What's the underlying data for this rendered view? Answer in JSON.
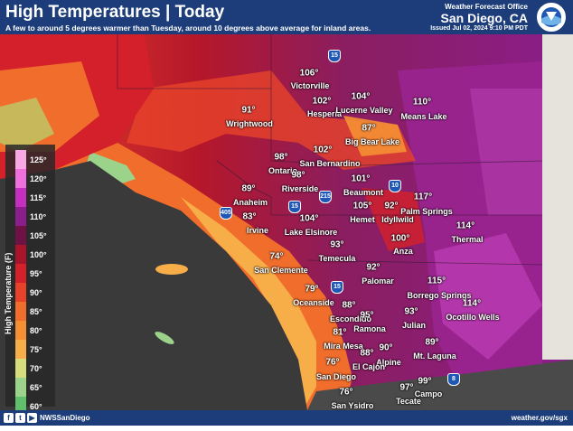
{
  "header": {
    "title": "High Temperatures | Today",
    "subtitle": "A few to around 5 degrees warmer than Tuesday, around 10 degrees above average for inland areas.",
    "office_line1": "Weather Forecast Office",
    "office_line2": "San Diego, CA",
    "issued": "Issued Jul 02, 2024 9:10 PM PDT",
    "logo_icon": "noaa-nws-logo"
  },
  "legend": {
    "title": "High Temperature (F)",
    "items": [
      {
        "label": "125°",
        "color": "#f9a8e6"
      },
      {
        "label": "120°",
        "color": "#ef6fdc"
      },
      {
        "label": "115°",
        "color": "#c42fc0"
      },
      {
        "label": "110°",
        "color": "#8b1e8a"
      },
      {
        "label": "105°",
        "color": "#6e1245"
      },
      {
        "label": "100°",
        "color": "#a8152a"
      },
      {
        "label": "95°",
        "color": "#d4202a"
      },
      {
        "label": "90°",
        "color": "#e8432a"
      },
      {
        "label": "85°",
        "color": "#f06d2c"
      },
      {
        "label": "80°",
        "color": "#f58f34"
      },
      {
        "label": "75°",
        "color": "#f7ad48"
      },
      {
        "label": "70°",
        "color": "#d7dc7c"
      },
      {
        "label": "65°",
        "color": "#9bd38a"
      },
      {
        "label": "60°",
        "color": "#5fbf6d"
      }
    ]
  },
  "places": [
    {
      "temp": "106°",
      "name": "Victorville"
    },
    {
      "temp": "102°",
      "name": "Hesperia"
    },
    {
      "temp": "104°",
      "name": "Lucerne Valley"
    },
    {
      "temp": "110°",
      "name": "Means Lake"
    },
    {
      "temp": "91°",
      "name": "Wrightwood"
    },
    {
      "temp": "87°",
      "name": "Big Bear Lake"
    },
    {
      "temp": "98°",
      "name": "Ontario"
    },
    {
      "temp": "102°",
      "name": "San Bernardino"
    },
    {
      "temp": "98°",
      "name": "Riverside"
    },
    {
      "temp": "101°",
      "name": "Beaumont"
    },
    {
      "temp": "89°",
      "name": "Anaheim"
    },
    {
      "temp": "92°",
      "name": "Palm Springs"
    },
    {
      "temp": "117°",
      "name": ""
    },
    {
      "temp": "105°",
      "name": "Hemet"
    },
    {
      "temp": "",
      "name": "Idyllwild"
    },
    {
      "temp": "83°",
      "name": "Irvine"
    },
    {
      "temp": "104°",
      "name": "Lake Elsinore"
    },
    {
      "temp": "114°",
      "name": "Thermal"
    },
    {
      "temp": "100°",
      "name": "Anza"
    },
    {
      "temp": "93°",
      "name": "Temecula"
    },
    {
      "temp": "74°",
      "name": "San Clemente"
    },
    {
      "temp": "92°",
      "name": "Palomar"
    },
    {
      "temp": "115°",
      "name": "Borrego Springs"
    },
    {
      "temp": "79°",
      "name": "Oceanside"
    },
    {
      "temp": "88°",
      "name": "Escondido"
    },
    {
      "temp": "114°",
      "name": "Ocotillo Wells"
    },
    {
      "temp": "93°",
      "name": "Julian"
    },
    {
      "temp": "95°",
      "name": "Ramona"
    },
    {
      "temp": "81°",
      "name": "Mira Mesa"
    },
    {
      "temp": "90°",
      "name": "Alpine"
    },
    {
      "temp": "89°",
      "name": "Mt. Laguna"
    },
    {
      "temp": "88°",
      "name": "El Cajon"
    },
    {
      "temp": "76°",
      "name": "San Diego"
    },
    {
      "temp": "76°",
      "name": "San Ysidro"
    },
    {
      "temp": "97°",
      "name": "Tecate"
    },
    {
      "temp": "99°",
      "name": "Campo"
    }
  ],
  "highways": [
    "15",
    "10",
    "215",
    "15",
    "405",
    "15",
    "8"
  ],
  "footer": {
    "social_icons": [
      "facebook-icon",
      "twitter-icon",
      "youtube-icon"
    ],
    "handle": "NWSSanDiego",
    "website": "weather.gov/sgx"
  }
}
